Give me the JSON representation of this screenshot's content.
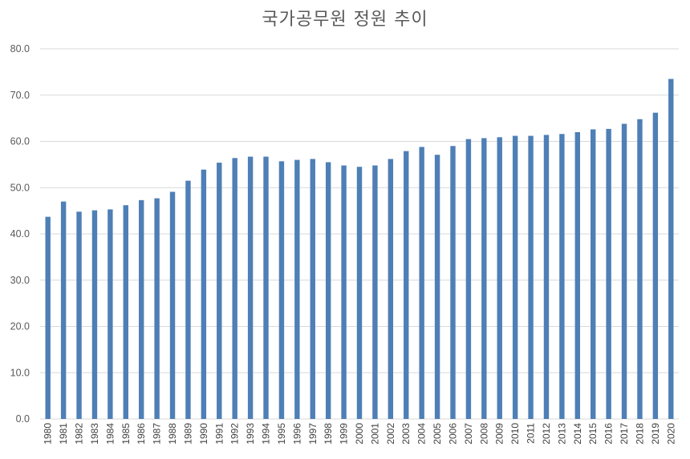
{
  "chart_data": {
    "type": "bar",
    "title": "국가공무원 정원 추이",
    "xlabel": "",
    "ylabel": "",
    "ylim": [
      0,
      80
    ],
    "y_ticks": [
      "0.0",
      "10.0",
      "20.0",
      "30.0",
      "40.0",
      "50.0",
      "60.0",
      "70.0",
      "80.0"
    ],
    "grid": true,
    "legend": "none",
    "bar_color": "#4e7fb6",
    "gridline_color": "#d9d9d9",
    "categories": [
      "1980",
      "1981",
      "1982",
      "1983",
      "1984",
      "1985",
      "1986",
      "1987",
      "1988",
      "1989",
      "1990",
      "1991",
      "1992",
      "1993",
      "1994",
      "1995",
      "1996",
      "1997",
      "1998",
      "1999",
      "2000",
      "2001",
      "2002",
      "2003",
      "2004",
      "2005",
      "2006",
      "2007",
      "2008",
      "2009",
      "2010",
      "2011",
      "2012",
      "2013",
      "2014",
      "2015",
      "2016",
      "2017",
      "2018",
      "2019",
      "2020"
    ],
    "values": [
      43.7,
      47.0,
      44.8,
      45.1,
      45.3,
      46.2,
      47.3,
      47.7,
      49.1,
      51.5,
      53.9,
      55.4,
      56.4,
      56.7,
      56.7,
      55.7,
      56.0,
      56.2,
      55.5,
      54.8,
      54.5,
      54.8,
      56.2,
      57.9,
      58.8,
      57.1,
      59.0,
      60.5,
      60.7,
      60.9,
      61.2,
      61.2,
      61.4,
      61.6,
      62.0,
      62.6,
      62.7,
      63.8,
      64.8,
      66.2,
      73.5
    ]
  }
}
